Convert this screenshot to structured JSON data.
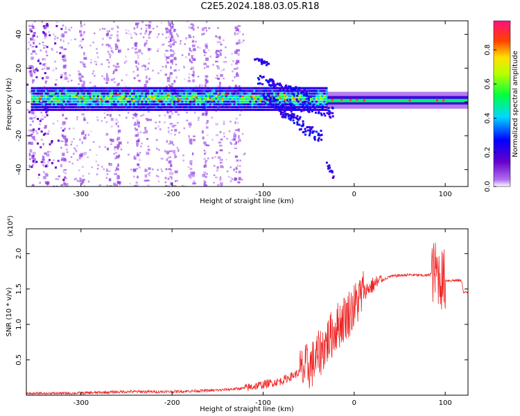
{
  "title": "C2E5.2024.188.03.05.R18",
  "colors": {
    "snr_line": "#ee2222",
    "axis": "#000000"
  },
  "chart_data": [
    {
      "type": "heatmap",
      "xlabel": "Height of straight line (km)",
      "ylabel": "Frequency (Hz)",
      "xlim": [
        -360,
        125
      ],
      "ylim": [
        -50,
        48
      ],
      "xticks": [
        -300,
        -200,
        -100,
        0,
        100
      ],
      "xtick_labels": [
        "-300",
        "-200",
        "-100",
        "0",
        "100"
      ],
      "yticks": [
        -40,
        -20,
        0,
        20,
        40
      ],
      "ytick_labels": [
        "-40",
        "-20",
        "0",
        "20",
        "40"
      ],
      "colorbar": {
        "label": "Normalized spectral amplitude",
        "range": [
          0,
          0.97
        ],
        "ticks": [
          0.0,
          0.2,
          0.4,
          0.6,
          0.8
        ],
        "tick_labels": [
          "0.0",
          "0.2",
          "0.4",
          "0.6",
          "0.8"
        ],
        "colormap": "rainbow (white-purple-blue-cyan-green-yellow-orange-red-pink)"
      },
      "features": [
        {
          "name": "carrier band",
          "x": [
            -355,
            125
          ],
          "y_center": 3,
          "y_halfwidth": 4,
          "amplitude": 0.45
        },
        {
          "name": "descending branch",
          "x": [
            -100,
            -40
          ],
          "y": [
            2,
            -22
          ]
        },
        {
          "name": "doppler branch",
          "x": [
            -110,
            -50
          ],
          "y": [
            26,
            5
          ]
        },
        {
          "name": "faint trace",
          "x": [
            -30,
            -24
          ],
          "y": [
            -36,
            -43
          ]
        }
      ]
    },
    {
      "type": "line",
      "xlabel": "Height of straight line (km)",
      "ylabel": "SNR (10 * v/v)",
      "y_multiplier": "(x10⁴)",
      "xlim": [
        -360,
        125
      ],
      "ylim": [
        0,
        2.35
      ],
      "xticks": [
        -300,
        -200,
        -100,
        0,
        100
      ],
      "xtick_labels": [
        "-300",
        "-200",
        "-100",
        "0",
        "100"
      ],
      "yticks": [
        0.5,
        1.0,
        1.5,
        2.0
      ],
      "ytick_labels": [
        "0.5",
        "1.0",
        "1.5",
        "2.0"
      ],
      "series": [
        {
          "x": [
            -360,
            -300,
            -250,
            -200,
            -150,
            -120,
            -100,
            -80,
            -60,
            -45,
            -30,
            -20,
            -10,
            0,
            10,
            20,
            30,
            40,
            60,
            80,
            90,
            95,
            100,
            110,
            118,
            120,
            125
          ],
          "y": [
            0.02,
            0.03,
            0.05,
            0.05,
            0.07,
            0.1,
            0.15,
            0.2,
            0.32,
            0.45,
            0.75,
            0.95,
            1.1,
            1.25,
            1.45,
            1.55,
            1.62,
            1.68,
            1.7,
            1.69,
            1.75,
            1.65,
            1.62,
            1.62,
            1.62,
            1.45,
            1.45
          ]
        }
      ]
    }
  ]
}
